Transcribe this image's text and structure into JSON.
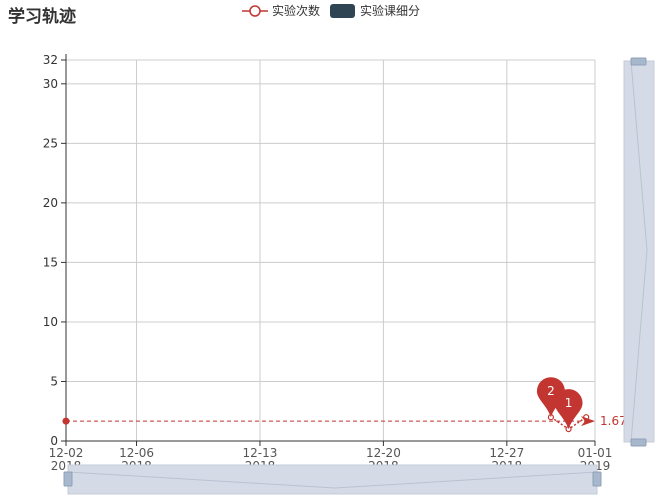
{
  "page": {
    "title": "学习轨迹"
  },
  "colors": {
    "primary": "#c23531",
    "secondary": "#2f4554",
    "grid": "#cccccc",
    "slider_fill": "#d5dbe6"
  },
  "legend": [
    {
      "label": "实验次数",
      "style": "line-circle",
      "color": "#c23531"
    },
    {
      "label": "实验课细分",
      "style": "rect",
      "color": "#2f4554"
    }
  ],
  "chart_data": {
    "type": "line",
    "title": "学习轨迹",
    "x_range": [
      "2018-12-02",
      "2019-01-01"
    ],
    "x_ticks": [
      {
        "date": "2018-12-02",
        "label": "12-02",
        "year": "2018"
      },
      {
        "date": "2018-12-06",
        "label": "12-06",
        "year": "2018"
      },
      {
        "date": "2018-12-13",
        "label": "12-13",
        "year": "2018"
      },
      {
        "date": "2018-12-20",
        "label": "12-20",
        "year": "2018"
      },
      {
        "date": "2018-12-27",
        "label": "12-27",
        "year": "2018"
      },
      {
        "date": "2019-01-01",
        "label": "01-01",
        "year": "2019"
      }
    ],
    "ylim": [
      0,
      32
    ],
    "y_ticks": [
      0,
      5,
      10,
      15,
      20,
      25,
      30,
      32
    ],
    "grid": true,
    "series": [
      {
        "name": "实验次数",
        "color": "#c23531",
        "points": [
          {
            "x": "2018-12-29 12:00",
            "y": 2
          },
          {
            "x": "2018-12-30 12:00",
            "y": 1
          },
          {
            "x": "2018-12-31 12:00",
            "y": 2
          }
        ]
      }
    ],
    "mark_points": [
      {
        "x": "2018-12-29 12:00",
        "y": 2,
        "label": "2"
      },
      {
        "x": "2018-12-30 12:00",
        "y": 1,
        "label": "1"
      }
    ],
    "mark_line": {
      "type": "average",
      "value": 1.67,
      "label": "1.67"
    },
    "x_slider": {
      "start_pct": 0,
      "end_pct": 100
    },
    "y_slider": {
      "start_pct": 0,
      "end_pct": 100
    }
  }
}
